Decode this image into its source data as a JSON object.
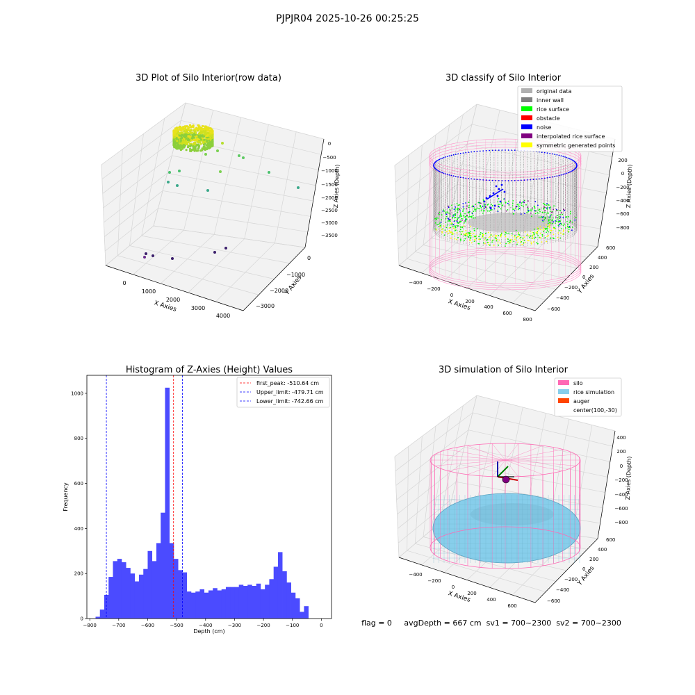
{
  "figure": {
    "suptitle": "PJPJR04 2025-10-26 00:25:25"
  },
  "panel1": {
    "title": "3D Plot of Silo Interior(row data)",
    "xlabel": "X Axies",
    "ylabel": "Y Axies",
    "zlabel": "Z Axies (Depth)",
    "xticks": [
      "0",
      "1000",
      "2000",
      "3000",
      "4000"
    ],
    "yticks": [
      "0",
      "−1000",
      "−2000",
      "−3000"
    ],
    "zticks": [
      "0",
      "−500",
      "−1000",
      "−1500",
      "−2000",
      "−2500",
      "−3000",
      "−3500"
    ],
    "colors": {
      "low": "#3b1f6b",
      "mid": "#3aa88a",
      "high": "#e8e21a"
    }
  },
  "panel2": {
    "title": "3D classify of Silo Interior",
    "xlabel": "X Axies",
    "ylabel": "Y Axies",
    "zlabel": "Z Axies (Depth)",
    "xticks": [
      "−400",
      "−200",
      "0",
      "200",
      "400",
      "600",
      "800"
    ],
    "yticks": [
      "600",
      "400",
      "200",
      "0",
      "−200",
      "−400",
      "−600"
    ],
    "zticks": [
      "200",
      "0",
      "−200",
      "−400",
      "−600",
      "−800"
    ],
    "zticks_hidden": [
      "600",
      "400"
    ],
    "legend": [
      {
        "label": "original data",
        "color": "#b0b0b0"
      },
      {
        "label": "inner wall",
        "color": "#808080"
      },
      {
        "label": "rice surface",
        "color": "#00ff00"
      },
      {
        "label": "obstacle",
        "color": "#ff0000"
      },
      {
        "label": "noise",
        "color": "#0000ff"
      },
      {
        "label": "interpolated rice surface",
        "color": "#800080"
      },
      {
        "label": "symmetric generated points",
        "color": "#ffff00"
      }
    ],
    "cylinder_color": "#ff8fc8"
  },
  "panel3": {
    "title": "Histogram of Z-Axies (Height) Values",
    "xlabel": "Depth (cm)",
    "ylabel": "Frequency",
    "legend": [
      {
        "label": "first_peak: -510.64 cm",
        "color": "#ff0000"
      },
      {
        "label": "Upper_limit: -479.71 cm",
        "color": "#0000ff"
      },
      {
        "label": "Lower_limit: -742.66 cm",
        "color": "#0000ff"
      }
    ],
    "bar_color": "#4b4bff"
  },
  "panel4": {
    "title": "3D simulation of Silo Interior",
    "xlabel": "X Axies",
    "ylabel": "Y Axies",
    "zlabel": "Z Axies (Depth)",
    "xticks": [
      "−400",
      "−200",
      "0",
      "200",
      "400",
      "600"
    ],
    "yticks": [
      "600",
      "400",
      "200",
      "0",
      "−200",
      "−400",
      "−600"
    ],
    "zticks": [
      "400",
      "200",
      "0",
      "−200",
      "−400",
      "−600",
      "−800"
    ],
    "legend": [
      {
        "label": "silo",
        "color": "#ff69b4"
      },
      {
        "label": "rice simulation",
        "color": "#87ceeb"
      },
      {
        "label": "auger",
        "color": "#ff4500"
      },
      {
        "label": "center(100,-30)",
        "color": ""
      }
    ],
    "status": "flag = 0     avgDepth = 667 cm  sv1 = 700~2300  sv2 = 700~2300"
  },
  "chart_data": [
    {
      "type": "scatter",
      "title": "3D Plot of Silo Interior(row data)",
      "xlabel": "X Axies",
      "ylabel": "Y Axies",
      "zlabel": "Z Axies (Depth)"
    },
    {
      "type": "scatter",
      "title": "3D classify of Silo Interior",
      "xlabel": "X Axies",
      "ylabel": "Y Axies",
      "zlabel": "Z Axies (Depth)"
    },
    {
      "type": "bar",
      "title": "Histogram of Z-Axies (Height) Values",
      "xlabel": "Depth (cm)",
      "ylabel": "Frequency",
      "xlim": [
        -810,
        35
      ],
      "ylim": [
        0,
        1080
      ],
      "xticks": [
        -800,
        -700,
        -600,
        -500,
        -400,
        -300,
        -200,
        -100,
        0
      ],
      "yticks": [
        0,
        200,
        400,
        600,
        800,
        1000
      ],
      "bin_width": 15,
      "bin_start": -780,
      "values": [
        8,
        40,
        105,
        185,
        255,
        265,
        250,
        225,
        200,
        165,
        195,
        220,
        300,
        255,
        335,
        470,
        1025,
        335,
        265,
        215,
        205,
        120,
        115,
        120,
        130,
        115,
        125,
        135,
        125,
        130,
        140,
        140,
        140,
        150,
        145,
        150,
        145,
        155,
        130,
        150,
        175,
        230,
        295,
        210,
        160,
        115,
        90,
        30,
        55
      ],
      "lines": [
        {
          "label": "first_peak: -510.64 cm",
          "x": -510.64,
          "color": "#ff0000"
        },
        {
          "label": "Upper_limit: -479.71 cm",
          "x": -479.71,
          "color": "#0000ff"
        },
        {
          "label": "Lower_limit: -742.66 cm",
          "x": -742.66,
          "color": "#0000ff"
        }
      ]
    },
    {
      "type": "scatter",
      "title": "3D simulation of Silo Interior",
      "xlabel": "X Axies",
      "ylabel": "Y Axies",
      "zlabel": "Z Axies (Depth)"
    }
  ]
}
